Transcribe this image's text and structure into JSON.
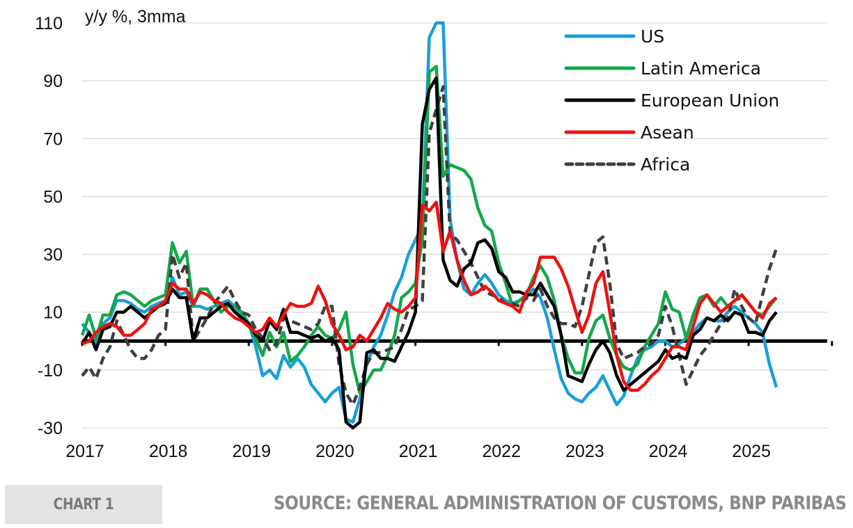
{
  "chart_data": {
    "type": "line",
    "title": "",
    "unit_label": "y/y %, 3mma",
    "xlabel": "",
    "ylabel": "y/y %, 3mma",
    "ylim": [
      -30,
      110
    ],
    "yticks": [
      110,
      90,
      70,
      50,
      30,
      10,
      -10,
      -30
    ],
    "ytick_labels": [
      "110",
      "90",
      "70",
      "50",
      "30",
      "10",
      "-10",
      "-30"
    ],
    "xlim_months": [
      "2017-01",
      "2025-12"
    ],
    "xtick_labels": [
      "2017",
      "2018",
      "2019",
      "2020",
      "2021",
      "2022",
      "2023",
      "2024",
      "2025"
    ],
    "zero_line": true,
    "grid": "horizontal",
    "legend_position": "top-right",
    "x_start": "2017-01",
    "x_frequency": "monthly",
    "series": [
      {
        "name": "US",
        "color": "#1a9ed9",
        "dash": "solid",
        "values": [
          6,
          3,
          -1,
          6,
          8,
          14,
          14,
          13,
          11,
          10,
          12,
          13,
          14,
          22,
          16,
          17,
          12,
          12,
          11,
          12,
          13,
          14,
          12,
          8,
          6,
          -2,
          -12,
          -10,
          -13,
          -5,
          -9,
          -6,
          -9,
          -15,
          -18,
          -21,
          -18,
          -16,
          -27,
          -28,
          -20,
          -8,
          -2,
          2,
          9,
          17,
          22,
          30,
          35,
          40,
          105,
          110,
          110,
          42,
          28,
          18,
          16,
          20,
          23,
          20,
          16,
          14,
          13,
          14,
          16,
          18,
          15,
          8,
          -3,
          -13,
          -18,
          -20,
          -21,
          -18,
          -16,
          -12,
          -17,
          -22,
          -19,
          -12,
          -6,
          -3,
          -2,
          0,
          0,
          -2,
          -1,
          1,
          3,
          6,
          8,
          7,
          7,
          10,
          12,
          10,
          8,
          6,
          3,
          -8,
          -16
        ]
      },
      {
        "name": "Latin America",
        "color": "#14a84a",
        "dash": "solid",
        "values": [
          2,
          9,
          1,
          9,
          9,
          16,
          17,
          16,
          14,
          12,
          14,
          15,
          16,
          34,
          27,
          31,
          12,
          18,
          18,
          14,
          10,
          12,
          12,
          10,
          6,
          1,
          -5,
          3,
          -2,
          3,
          -7,
          -5,
          -2,
          2,
          5,
          2,
          1,
          4,
          10,
          -8,
          -18,
          -14,
          -10,
          -10,
          -5,
          2,
          15,
          17,
          20,
          35,
          93,
          95,
          57,
          61,
          60,
          59,
          56,
          46,
          40,
          38,
          27,
          20,
          12,
          14,
          16,
          22,
          26,
          22,
          14,
          2,
          -6,
          -11,
          -11,
          1,
          7,
          9,
          1,
          -5,
          -9,
          -10,
          -8,
          -2,
          2,
          6,
          17,
          11,
          10,
          1,
          9,
          15,
          16,
          12,
          15,
          12,
          14,
          16,
          13,
          10,
          9,
          12,
          15
        ]
      },
      {
        "name": "European Union",
        "color": "#000000",
        "dash": "solid",
        "values": [
          -1,
          3,
          -3,
          4,
          5,
          10,
          10,
          12,
          10,
          8,
          10,
          12,
          13,
          18,
          15,
          15,
          0,
          8,
          8,
          10,
          12,
          13,
          10,
          8,
          6,
          2,
          0,
          7,
          4,
          11,
          3,
          3,
          2,
          1,
          2,
          0,
          1,
          -3,
          -28,
          -30,
          -28,
          -4,
          -3,
          -6,
          -6,
          -7,
          -2,
          3,
          10,
          75,
          87,
          91,
          28,
          21,
          19,
          25,
          27,
          34,
          35,
          32,
          24,
          22,
          17,
          17,
          16,
          16,
          20,
          16,
          12,
          2,
          -12,
          -13,
          -14,
          -8,
          -3,
          0,
          -4,
          -12,
          -17,
          -15,
          -13,
          -11,
          -9,
          -7,
          -3,
          -6,
          -5,
          -6,
          2,
          4,
          8,
          7,
          9,
          7,
          10,
          9,
          3,
          3,
          2,
          7,
          10
        ]
      },
      {
        "name": "Asean",
        "color": "#ee1111",
        "dash": "solid",
        "values": [
          -1,
          0,
          3,
          5,
          6,
          5,
          2,
          2,
          4,
          6,
          11,
          12,
          14,
          20,
          18,
          18,
          13,
          17,
          16,
          14,
          13,
          10,
          8,
          7,
          5,
          3,
          4,
          8,
          5,
          9,
          13,
          12,
          12,
          13,
          19,
          14,
          6,
          2,
          -3,
          -2,
          2,
          0,
          4,
          8,
          13,
          11,
          10,
          12,
          15,
          47,
          45,
          48,
          31,
          38,
          28,
          21,
          16,
          17,
          19,
          17,
          14,
          13,
          12,
          10,
          17,
          20,
          29,
          29,
          29,
          25,
          19,
          11,
          3,
          9,
          20,
          24,
          10,
          -5,
          -14,
          -17,
          -17,
          -15,
          -12,
          -10,
          -6,
          -2,
          -2,
          -3,
          5,
          13,
          16,
          13,
          10,
          12,
          14,
          16,
          13,
          10,
          8,
          13,
          15
        ]
      },
      {
        "name": "Africa",
        "color": "#3f3f3f",
        "dash": "dashed",
        "values": [
          -12,
          -9,
          -13,
          -6,
          -2,
          7,
          2,
          -3,
          -6,
          -6,
          -3,
          2,
          4,
          30,
          22,
          27,
          0,
          4,
          8,
          13,
          16,
          19,
          14,
          10,
          9,
          4,
          1,
          -3,
          -1,
          8,
          7,
          6,
          5,
          4,
          6,
          12,
          12,
          -8,
          -18,
          -22,
          -16,
          -8,
          -4,
          -4,
          -3,
          -2,
          4,
          11,
          12,
          14,
          72,
          80,
          88,
          37,
          35,
          31,
          27,
          22,
          17,
          16,
          15,
          13,
          13,
          12,
          15,
          14,
          18,
          12,
          8,
          6,
          6,
          5,
          12,
          23,
          34,
          36,
          20,
          -1,
          -6,
          -5,
          -4,
          -2,
          -1,
          2,
          12,
          5,
          -5,
          -15,
          -10,
          -5,
          -2,
          2,
          6,
          8,
          18,
          12,
          8,
          6,
          16,
          25,
          32
        ]
      }
    ]
  },
  "footer": {
    "chart_label": "CHART 1",
    "source": "SOURCE: GENERAL ADMINISTRATION OF CUSTOMS, BNP PARIBAS"
  }
}
